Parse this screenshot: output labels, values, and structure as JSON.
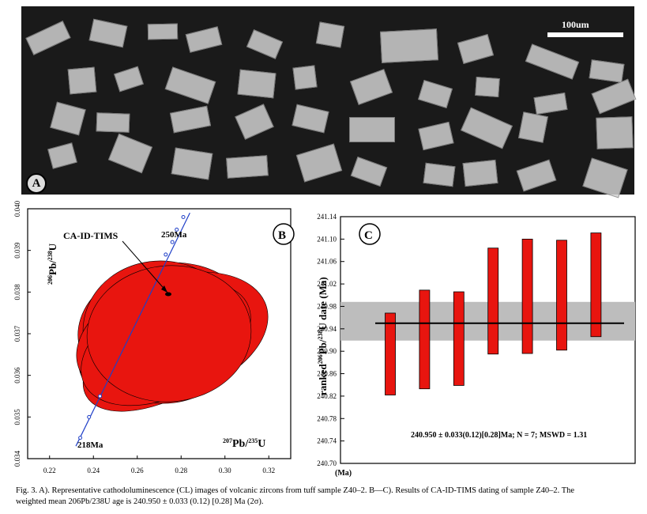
{
  "panel_a": {
    "letter": "A",
    "scale_label": "100um"
  },
  "panel_b": {
    "letter": "B",
    "method_label": "CA-ID-TIMS",
    "upper_age_label": "250Ma",
    "lower_age_label": "218Ma",
    "y_axis_label": "206Pb/238U",
    "x_axis_label": "207Pb/235U",
    "x_ticks": [
      "0.22",
      "0.24",
      "0.26",
      "0.28",
      "0.30",
      "0.32"
    ],
    "y_ticks": [
      "0.034",
      "0.035",
      "0.036",
      "0.037",
      "0.038",
      "0.039",
      "0.040"
    ],
    "colors": {
      "ellipse_fill": "#e8150f",
      "concordia": "#1f3fc8"
    }
  },
  "panel_c": {
    "letter": "C",
    "y_axis_label": "ranked 206Pb/238U date (Ma)",
    "unit_label": "(Ma)",
    "summary": "240.950 ± 0.033(0.12)[0.28]Ma; N = 7; MSWD = 1.31",
    "colors": {
      "bar_fill": "#e8150f",
      "mean_band": "#bdbdbd"
    }
  },
  "chart_data": [
    {
      "type": "scatter",
      "title": "",
      "xlabel": "207Pb/235U",
      "ylabel": "206Pb/238U",
      "xlim": [
        0.21,
        0.33
      ],
      "ylim": [
        0.034,
        0.04
      ],
      "concordia_ages_labeled": [
        "218Ma",
        "250Ma"
      ],
      "annotation": "CA-ID-TIMS",
      "ellipse_count": 7
    },
    {
      "type": "bar",
      "title": "",
      "xlabel": "",
      "ylabel": "ranked 206Pb/238U date (Ma)",
      "ylim": [
        240.7,
        241.14
      ],
      "yticks": [
        "240.70",
        "240.74",
        "240.78",
        "240.82",
        "240.86",
        "240.90",
        "240.94",
        "240.98",
        "241.02",
        "241.06",
        "241.10",
        "241.14"
      ],
      "bars": [
        {
          "low": 240.822,
          "high": 240.968
        },
        {
          "low": 240.833,
          "high": 241.009
        },
        {
          "low": 240.839,
          "high": 241.006
        },
        {
          "low": 240.895,
          "high": 241.084
        },
        {
          "low": 240.896,
          "high": 241.1
        },
        {
          "low": 240.902,
          "high": 241.098
        },
        {
          "low": 240.926,
          "high": 241.111
        }
      ],
      "weighted_mean": 240.95,
      "mean_band": [
        240.919,
        240.988
      ]
    }
  ],
  "caption": {
    "line1": "Fig. 3. A). Representative cathodoluminescence (CL) images of volcanic zircons from tuff sample Z40–2. B—C). Results of CA-ID-TIMS dating of sample Z40–2. The",
    "line2": "weighted mean 206Pb/238U age is 240.950 ± 0.033 (0.12) [0.28] Ma (2σ)."
  }
}
